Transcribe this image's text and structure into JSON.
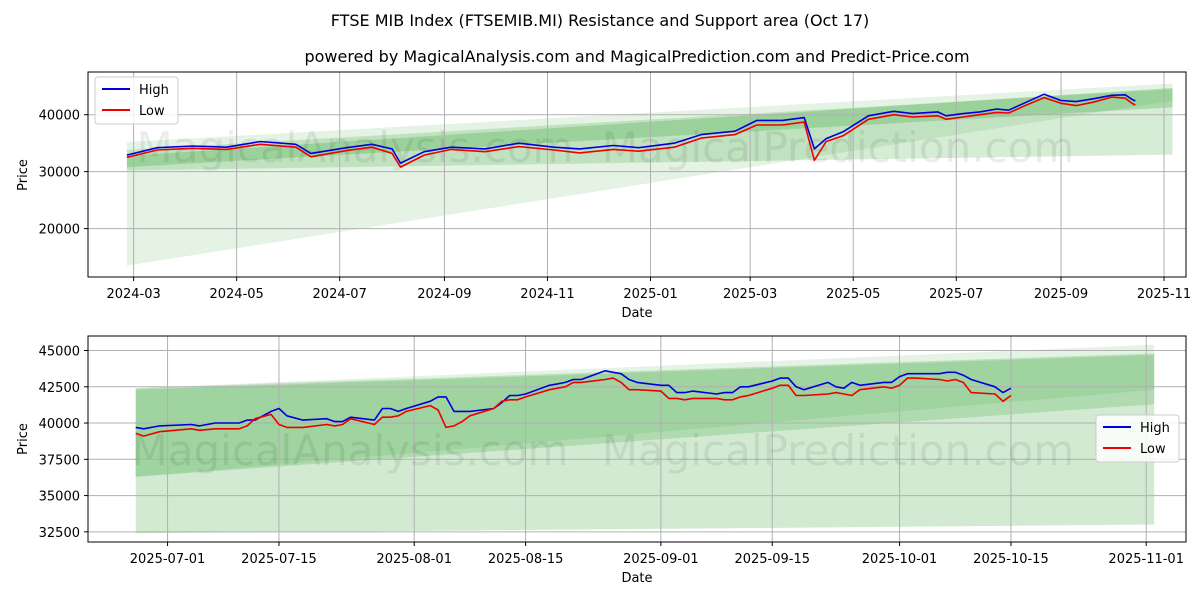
{
  "figure": {
    "title": "FTSE MIB Index (FTSEMIB.MI) Resistance and Support area (Oct 17)",
    "subtitle": "powered by MagicalAnalysis.com and MagicalPrediction.com and Predict-Price.com",
    "watermark_left": "MagicalAnalysis.com",
    "watermark_right": "MagicalPrediction.com"
  },
  "colors": {
    "high": "#0000dd",
    "low": "#ee0000",
    "band": "#2ca02c",
    "grid": "#b0b0b0",
    "axis": "#000000"
  },
  "chart_data": [
    {
      "type": "line",
      "xlabel": "Date",
      "ylabel": "Price",
      "xlim": [
        "2024-02-03",
        "2025-11-14"
      ],
      "ylim": [
        11500,
        47500
      ],
      "x_ticks": [
        "2024-03",
        "2024-05",
        "2024-07",
        "2024-09",
        "2024-11",
        "2025-01",
        "2025-03",
        "2025-05",
        "2025-07",
        "2025-09",
        "2025-11"
      ],
      "x_tick_dates": [
        "2024-03-01",
        "2024-05-01",
        "2024-07-01",
        "2024-09-01",
        "2024-11-01",
        "2025-01-01",
        "2025-03-01",
        "2025-05-01",
        "2025-07-01",
        "2025-09-01",
        "2025-11-01"
      ],
      "y_ticks": [
        20000,
        30000,
        40000
      ],
      "y_tick_labels": [
        "20000",
        "30000",
        "40000"
      ],
      "legend": {
        "position": "top-left",
        "entries": [
          "High",
          "Low"
        ]
      },
      "bands": [
        {
          "name": "resistance-wide",
          "x": [
            "2024-02-26",
            "2025-11-06"
          ],
          "upper": [
            35200,
            45500
          ],
          "lower": [
            13500,
            42500
          ],
          "opacity": 0.12
        },
        {
          "name": "support-wide",
          "x": [
            "2024-02-26",
            "2025-11-06"
          ],
          "upper": [
            33800,
            44500
          ],
          "lower": [
            30200,
            33000
          ],
          "opacity": 0.2
        },
        {
          "name": "core",
          "x": [
            "2024-02-26",
            "2025-11-06"
          ],
          "upper": [
            32800,
            44700
          ],
          "lower": [
            30800,
            41300
          ],
          "opacity": 0.25
        }
      ],
      "series": [
        {
          "name": "High",
          "x": [
            "2024-02-26",
            "2024-03-15",
            "2024-04-05",
            "2024-04-25",
            "2024-05-15",
            "2024-06-05",
            "2024-06-14",
            "2024-07-05",
            "2024-07-20",
            "2024-08-01",
            "2024-08-06",
            "2024-08-20",
            "2024-09-05",
            "2024-09-25",
            "2024-10-15",
            "2024-11-05",
            "2024-11-20",
            "2024-12-10",
            "2024-12-25",
            "2025-01-15",
            "2025-01-31",
            "2025-02-20",
            "2025-03-05",
            "2025-03-20",
            "2025-04-02",
            "2025-04-08",
            "2025-04-15",
            "2025-04-25",
            "2025-05-10",
            "2025-05-25",
            "2025-06-05",
            "2025-06-20",
            "2025-06-25",
            "2025-07-05",
            "2025-07-15",
            "2025-07-25",
            "2025-08-01",
            "2025-08-10",
            "2025-08-22",
            "2025-09-01",
            "2025-09-10",
            "2025-09-20",
            "2025-10-01",
            "2025-10-09",
            "2025-10-13",
            "2025-10-15"
          ],
          "values": [
            32900,
            34200,
            34500,
            34300,
            35300,
            34800,
            33200,
            34200,
            34800,
            34000,
            31500,
            33500,
            34300,
            34000,
            35000,
            34300,
            34000,
            34600,
            34200,
            35000,
            36500,
            37100,
            39000,
            39000,
            39500,
            34000,
            35800,
            37000,
            39800,
            40600,
            40200,
            40500,
            39800,
            40200,
            40500,
            41000,
            40800,
            42000,
            43600,
            42500,
            42300,
            42800,
            43400,
            43500,
            42700,
            42400
          ]
        },
        {
          "name": "Low",
          "x": [
            "2024-02-26",
            "2024-03-15",
            "2024-04-05",
            "2024-04-25",
            "2024-05-15",
            "2024-06-05",
            "2024-06-14",
            "2024-07-05",
            "2024-07-20",
            "2024-08-01",
            "2024-08-06",
            "2024-08-20",
            "2024-09-05",
            "2024-09-25",
            "2024-10-15",
            "2024-11-05",
            "2024-11-20",
            "2024-12-10",
            "2024-12-25",
            "2025-01-15",
            "2025-01-31",
            "2025-02-20",
            "2025-03-05",
            "2025-03-20",
            "2025-04-02",
            "2025-04-08",
            "2025-04-15",
            "2025-04-25",
            "2025-05-10",
            "2025-05-25",
            "2025-06-05",
            "2025-06-20",
            "2025-06-25",
            "2025-07-05",
            "2025-07-15",
            "2025-07-25",
            "2025-08-01",
            "2025-08-10",
            "2025-08-22",
            "2025-09-01",
            "2025-09-10",
            "2025-09-20",
            "2025-10-01",
            "2025-10-09",
            "2025-10-13",
            "2025-10-15"
          ],
          "values": [
            32500,
            33800,
            34100,
            33900,
            34800,
            34300,
            32600,
            33700,
            34300,
            33200,
            30800,
            32900,
            33900,
            33500,
            34400,
            33800,
            33300,
            33900,
            33600,
            34300,
            35900,
            36500,
            38200,
            38200,
            38700,
            32000,
            35300,
            36300,
            39200,
            40000,
            39600,
            39800,
            39200,
            39600,
            40000,
            40400,
            40300,
            41500,
            43000,
            42000,
            41600,
            42200,
            43100,
            42900,
            42000,
            41700
          ]
        }
      ]
    },
    {
      "type": "line",
      "xlabel": "Date",
      "ylabel": "Price",
      "xlim": [
        "2025-06-21",
        "2025-11-06"
      ],
      "ylim": [
        31800,
        46000
      ],
      "x_ticks": [
        "2025-07-01",
        "2025-07-15",
        "2025-08-01",
        "2025-08-15",
        "2025-09-01",
        "2025-09-15",
        "2025-10-01",
        "2025-10-15",
        "2025-11-01"
      ],
      "x_tick_dates": [
        "2025-07-01",
        "2025-07-15",
        "2025-08-01",
        "2025-08-15",
        "2025-09-01",
        "2025-09-15",
        "2025-10-01",
        "2025-10-15",
        "2025-11-01"
      ],
      "y_ticks": [
        32500,
        35000,
        37500,
        40000,
        42500,
        45000
      ],
      "y_tick_labels": [
        "32500",
        "35000",
        "37500",
        "40000",
        "42500",
        "45000"
      ],
      "legend": {
        "position": "center-right",
        "entries": [
          "High",
          "Low"
        ]
      },
      "bands": [
        {
          "name": "resistance",
          "x": [
            "2025-06-27",
            "2025-11-02"
          ],
          "upper": [
            42400,
            45400
          ],
          "lower": [
            36300,
            42300
          ],
          "opacity": 0.12
        },
        {
          "name": "support",
          "x": [
            "2025-06-27",
            "2025-11-02"
          ],
          "upper": [
            42400,
            44800
          ],
          "lower": [
            32400,
            33000
          ],
          "opacity": 0.22
        },
        {
          "name": "core",
          "x": [
            "2025-06-27",
            "2025-11-02"
          ],
          "upper": [
            42300,
            44700
          ],
          "lower": [
            36300,
            41300
          ],
          "opacity": 0.2
        }
      ],
      "series": [
        {
          "name": "High",
          "x": [
            "2025-06-27",
            "2025-06-28",
            "2025-06-30",
            "2025-07-04",
            "2025-07-05",
            "2025-07-07",
            "2025-07-10",
            "2025-07-11",
            "2025-07-12",
            "2025-07-14",
            "2025-07-15",
            "2025-07-16",
            "2025-07-18",
            "2025-07-21",
            "2025-07-22",
            "2025-07-23",
            "2025-07-24",
            "2025-07-27",
            "2025-07-28",
            "2025-07-29",
            "2025-07-30",
            "2025-07-31",
            "2025-08-03",
            "2025-08-04",
            "2025-08-05",
            "2025-08-06",
            "2025-08-07",
            "2025-08-08",
            "2025-08-11",
            "2025-08-12",
            "2025-08-13",
            "2025-08-14",
            "2025-08-15",
            "2025-08-18",
            "2025-08-19",
            "2025-08-20",
            "2025-08-21",
            "2025-08-22",
            "2025-08-25",
            "2025-08-26",
            "2025-08-27",
            "2025-08-28",
            "2025-08-29",
            "2025-09-01",
            "2025-09-02",
            "2025-09-03",
            "2025-09-04",
            "2025-09-05",
            "2025-09-08",
            "2025-09-09",
            "2025-09-10",
            "2025-09-11",
            "2025-09-12",
            "2025-09-15",
            "2025-09-16",
            "2025-09-17",
            "2025-09-18",
            "2025-09-19",
            "2025-09-22",
            "2025-09-23",
            "2025-09-24",
            "2025-09-25",
            "2025-09-26",
            "2025-09-29",
            "2025-09-30",
            "2025-10-01",
            "2025-10-02",
            "2025-10-03",
            "2025-10-06",
            "2025-10-07",
            "2025-10-08",
            "2025-10-09",
            "2025-10-10",
            "2025-10-13",
            "2025-10-14",
            "2025-10-15"
          ],
          "values": [
            39700,
            39600,
            39800,
            39900,
            39800,
            40000,
            40000,
            40200,
            40200,
            40800,
            41000,
            40500,
            40200,
            40300,
            40100,
            40100,
            40400,
            40200,
            41000,
            41000,
            40800,
            41000,
            41500,
            41800,
            41800,
            40800,
            40800,
            40800,
            41000,
            41400,
            41900,
            41900,
            42000,
            42600,
            42700,
            42800,
            43000,
            43000,
            43600,
            43500,
            43400,
            43000,
            42800,
            42600,
            42600,
            42100,
            42100,
            42200,
            42000,
            42100,
            42100,
            42500,
            42500,
            42900,
            43100,
            43100,
            42500,
            42300,
            42800,
            42500,
            42400,
            42800,
            42600,
            42800,
            42800,
            43200,
            43400,
            43400,
            43400,
            43500,
            43500,
            43300,
            43000,
            42500,
            42100,
            42400
          ]
        },
        {
          "name": "Low",
          "x": [
            "2025-06-27",
            "2025-06-28",
            "2025-06-30",
            "2025-07-04",
            "2025-07-05",
            "2025-07-07",
            "2025-07-10",
            "2025-07-11",
            "2025-07-12",
            "2025-07-14",
            "2025-07-15",
            "2025-07-16",
            "2025-07-18",
            "2025-07-21",
            "2025-07-22",
            "2025-07-23",
            "2025-07-24",
            "2025-07-27",
            "2025-07-28",
            "2025-07-29",
            "2025-07-30",
            "2025-07-31",
            "2025-08-03",
            "2025-08-04",
            "2025-08-05",
            "2025-08-06",
            "2025-08-07",
            "2025-08-08",
            "2025-08-11",
            "2025-08-12",
            "2025-08-13",
            "2025-08-14",
            "2025-08-15",
            "2025-08-18",
            "2025-08-19",
            "2025-08-20",
            "2025-08-21",
            "2025-08-22",
            "2025-08-25",
            "2025-08-26",
            "2025-08-27",
            "2025-08-28",
            "2025-08-29",
            "2025-09-01",
            "2025-09-02",
            "2025-09-03",
            "2025-09-04",
            "2025-09-05",
            "2025-09-08",
            "2025-09-09",
            "2025-09-10",
            "2025-09-11",
            "2025-09-12",
            "2025-09-15",
            "2025-09-16",
            "2025-09-17",
            "2025-09-18",
            "2025-09-19",
            "2025-09-22",
            "2025-09-23",
            "2025-09-24",
            "2025-09-25",
            "2025-09-26",
            "2025-09-29",
            "2025-09-30",
            "2025-10-01",
            "2025-10-02",
            "2025-10-03",
            "2025-10-06",
            "2025-10-07",
            "2025-10-08",
            "2025-10-09",
            "2025-10-10",
            "2025-10-13",
            "2025-10-14",
            "2025-10-15"
          ],
          "values": [
            39300,
            39100,
            39400,
            39600,
            39500,
            39600,
            39600,
            39800,
            40300,
            40600,
            39900,
            39700,
            39700,
            39900,
            39800,
            39900,
            40300,
            39900,
            40400,
            40400,
            40500,
            40800,
            41200,
            40900,
            39700,
            39800,
            40100,
            40500,
            41000,
            41500,
            41600,
            41600,
            41800,
            42300,
            42400,
            42500,
            42800,
            42800,
            43000,
            43100,
            42800,
            42300,
            42300,
            42200,
            41700,
            41700,
            41600,
            41700,
            41700,
            41600,
            41600,
            41800,
            41900,
            42400,
            42600,
            42600,
            41900,
            41900,
            42000,
            42100,
            42000,
            41900,
            42300,
            42500,
            42400,
            42600,
            43100,
            43100,
            43000,
            42900,
            43000,
            42800,
            42100,
            42000,
            41500,
            41900
          ]
        }
      ]
    }
  ]
}
